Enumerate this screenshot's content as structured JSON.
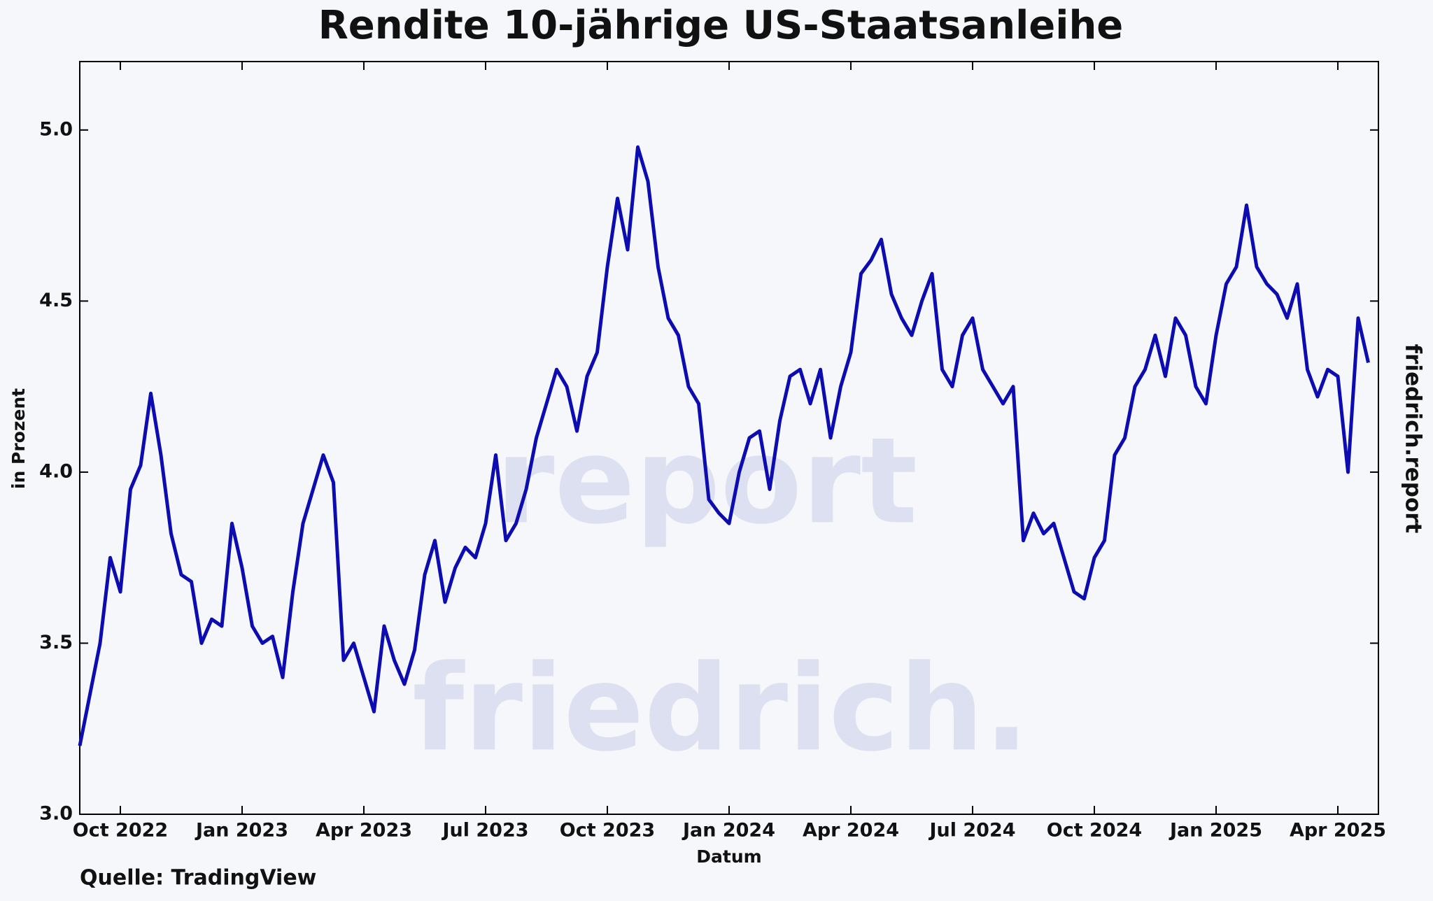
{
  "chart_data": {
    "type": "line",
    "title": "Rendite 10-jährige US-Staatsanleihe",
    "xlabel": "Datum",
    "ylabel": "in Prozent",
    "source": "Quelle: TradingView",
    "brand": "friedrich.report",
    "watermark": [
      "friedrich.",
      "report"
    ],
    "color": "#0c0cb0",
    "x": [
      "2022-09",
      "2022-09",
      "2022-09",
      "2022-09",
      "2022-10",
      "2022-10",
      "2022-10",
      "2022-10",
      "2022-11",
      "2022-11",
      "2022-11",
      "2022-11",
      "2022-12",
      "2022-12",
      "2022-12",
      "2022-12",
      "2023-01",
      "2023-01",
      "2023-01",
      "2023-01",
      "2023-02",
      "2023-02",
      "2023-02",
      "2023-02",
      "2023-03",
      "2023-03",
      "2023-03",
      "2023-03",
      "2023-04",
      "2023-04",
      "2023-04",
      "2023-04",
      "2023-05",
      "2023-05",
      "2023-05",
      "2023-05",
      "2023-06",
      "2023-06",
      "2023-06",
      "2023-06",
      "2023-07",
      "2023-07",
      "2023-07",
      "2023-07",
      "2023-08",
      "2023-08",
      "2023-08",
      "2023-08",
      "2023-09",
      "2023-09",
      "2023-09",
      "2023-09",
      "2023-10",
      "2023-10",
      "2023-10",
      "2023-10",
      "2023-11",
      "2023-11",
      "2023-11",
      "2023-11",
      "2023-12",
      "2023-12",
      "2023-12",
      "2023-12",
      "2024-01",
      "2024-01",
      "2024-01",
      "2024-01",
      "2024-02",
      "2024-02",
      "2024-02",
      "2024-02",
      "2024-03",
      "2024-03",
      "2024-03",
      "2024-03",
      "2024-04",
      "2024-04",
      "2024-04",
      "2024-04",
      "2024-05",
      "2024-05",
      "2024-05",
      "2024-05",
      "2024-06",
      "2024-06",
      "2024-06",
      "2024-06",
      "2024-07",
      "2024-07",
      "2024-07",
      "2024-07",
      "2024-08",
      "2024-08",
      "2024-08",
      "2024-08",
      "2024-09",
      "2024-09",
      "2024-09",
      "2024-09",
      "2024-10",
      "2024-10",
      "2024-10",
      "2024-10",
      "2024-11",
      "2024-11",
      "2024-11",
      "2024-11",
      "2024-12",
      "2024-12",
      "2024-12",
      "2024-12",
      "2025-01",
      "2025-01",
      "2025-01",
      "2025-01",
      "2025-02",
      "2025-02",
      "2025-02",
      "2025-02",
      "2025-03",
      "2025-03",
      "2025-03",
      "2025-03",
      "2025-04",
      "2025-04",
      "2025-04",
      "2025-04"
    ],
    "values": [
      3.2,
      3.35,
      3.5,
      3.75,
      3.65,
      3.95,
      4.02,
      4.23,
      4.05,
      3.82,
      3.7,
      3.68,
      3.5,
      3.57,
      3.55,
      3.85,
      3.72,
      3.55,
      3.5,
      3.52,
      3.4,
      3.65,
      3.85,
      3.95,
      4.05,
      3.97,
      3.45,
      3.5,
      3.4,
      3.3,
      3.55,
      3.45,
      3.38,
      3.48,
      3.7,
      3.8,
      3.62,
      3.72,
      3.78,
      3.75,
      3.85,
      4.05,
      3.8,
      3.85,
      3.95,
      4.1,
      4.2,
      4.3,
      4.25,
      4.12,
      4.28,
      4.35,
      4.6,
      4.8,
      4.65,
      4.95,
      4.85,
      4.6,
      4.45,
      4.4,
      4.25,
      4.2,
      3.92,
      3.88,
      3.85,
      4.0,
      4.1,
      4.12,
      3.95,
      4.15,
      4.28,
      4.3,
      4.2,
      4.3,
      4.1,
      4.25,
      4.35,
      4.58,
      4.62,
      4.68,
      4.52,
      4.45,
      4.4,
      4.5,
      4.58,
      4.3,
      4.25,
      4.4,
      4.45,
      4.3,
      4.25,
      4.2,
      4.25,
      3.8,
      3.88,
      3.82,
      3.85,
      3.75,
      3.65,
      3.63,
      3.75,
      3.8,
      4.05,
      4.1,
      4.25,
      4.3,
      4.4,
      4.28,
      4.45,
      4.4,
      4.25,
      4.2,
      4.4,
      4.55,
      4.6,
      4.78,
      4.6,
      4.55,
      4.52,
      4.45,
      4.55,
      4.3,
      4.22,
      4.3,
      4.28,
      4.0,
      4.45,
      4.32
    ],
    "xlim": [
      "2022-09",
      "2025-05"
    ],
    "xticks": [
      {
        "value": "2022-10",
        "label": "Oct 2022"
      },
      {
        "value": "2023-01",
        "label": "Jan 2023"
      },
      {
        "value": "2023-04",
        "label": "Apr 2023"
      },
      {
        "value": "2023-07",
        "label": "Jul 2023"
      },
      {
        "value": "2023-10",
        "label": "Oct 2023"
      },
      {
        "value": "2024-01",
        "label": "Jan 2024"
      },
      {
        "value": "2024-04",
        "label": "Apr 2024"
      },
      {
        "value": "2024-07",
        "label": "Jul 2024"
      },
      {
        "value": "2024-10",
        "label": "Oct 2024"
      },
      {
        "value": "2025-01",
        "label": "Jan 2025"
      },
      {
        "value": "2025-04",
        "label": "Apr 2025"
      }
    ],
    "ylim": [
      3.0,
      5.2
    ],
    "yticks": [
      {
        "value": 3,
        "label": "3.0"
      },
      3.5,
      {
        "value": 4,
        "label": "4.0"
      },
      4.5,
      {
        "value": 5,
        "label": "5.0"
      }
    ]
  }
}
